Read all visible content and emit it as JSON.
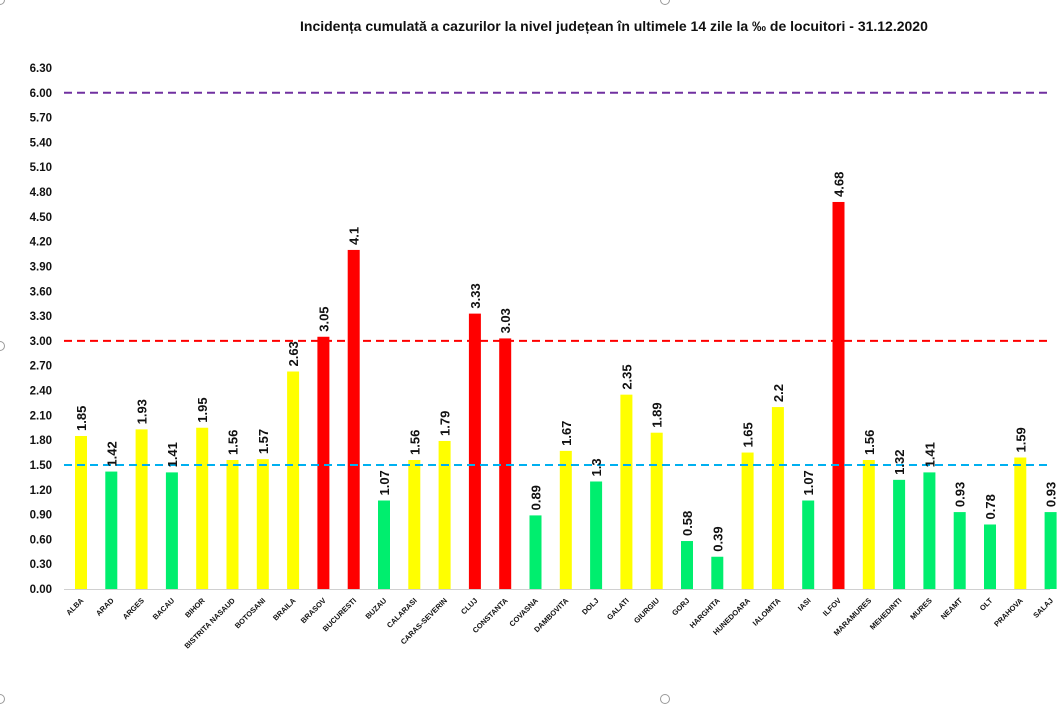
{
  "chart_data": {
    "type": "bar",
    "title": "Incidența cumulată a cazurilor la nivel județean în ultimele 14 zile la ‰ de locuitori - 31.12.2020",
    "xlabel": "",
    "ylabel": "",
    "ylim": [
      0,
      6.3
    ],
    "yticks": [
      "0.00",
      "0.30",
      "0.60",
      "0.90",
      "1.20",
      "1.50",
      "1.80",
      "2.10",
      "2.40",
      "2.70",
      "3.00",
      "3.30",
      "3.60",
      "3.90",
      "4.20",
      "4.50",
      "4.80",
      "5.10",
      "5.40",
      "5.70",
      "6.00",
      "6.30"
    ],
    "grid": false,
    "categories": [
      "ALBA",
      "ARAD",
      "ARGES",
      "BACAU",
      "BIHOR",
      "BISTRITA NASAUD",
      "BOTOSANI",
      "BRAILA",
      "BRASOV",
      "BUCURESTI",
      "BUZAU",
      "CALARASI",
      "CARAS-SEVERIN",
      "CLUJ",
      "CONSTANTA",
      "COVASNA",
      "DAMBOVITA",
      "DOLJ",
      "GALATI",
      "GIURGIU",
      "GORJ",
      "HARGHITA",
      "HUNEDOARA",
      "IALOMITA",
      "IASI",
      "ILFOV",
      "MARAMURES",
      "MEHEDINTI",
      "MURES",
      "NEAMT",
      "OLT",
      "PRAHOVA",
      "SALAJ"
    ],
    "values": [
      1.85,
      1.42,
      1.93,
      1.41,
      1.95,
      1.56,
      1.57,
      2.63,
      3.05,
      4.1,
      1.07,
      1.56,
      1.79,
      3.33,
      3.03,
      0.89,
      1.67,
      1.3,
      2.35,
      1.89,
      0.58,
      0.39,
      1.65,
      2.2,
      1.07,
      4.68,
      1.56,
      1.32,
      1.41,
      0.93,
      0.78,
      1.59,
      0.93
    ],
    "value_labels": [
      "1.85",
      "1.42",
      "1.93",
      "1.41",
      "1.95",
      "1.56",
      "1.57",
      "2.63",
      "3.05",
      "4.1",
      "1.07",
      "1.56",
      "1.79",
      "3.33",
      "3.03",
      "0.89",
      "1.67",
      "1.3",
      "2.35",
      "1.89",
      "0.58",
      "0.39",
      "1.65",
      "2.2",
      "1.07",
      "4.68",
      "1.56",
      "1.32",
      "1.41",
      "0.93",
      "0.78",
      "1.59",
      "0.93"
    ],
    "bar_colors": [
      "#ffff00",
      "#00ee6e",
      "#ffff00",
      "#00ee6e",
      "#ffff00",
      "#ffff00",
      "#ffff00",
      "#ffff00",
      "#ff0000",
      "#ff0000",
      "#00ee6e",
      "#ffff00",
      "#ffff00",
      "#ff0000",
      "#ff0000",
      "#00ee6e",
      "#ffff00",
      "#00ee6e",
      "#ffff00",
      "#ffff00",
      "#00ee6e",
      "#00ee6e",
      "#ffff00",
      "#ffff00",
      "#00ee6e",
      "#ff0000",
      "#ffff00",
      "#00ee6e",
      "#00ee6e",
      "#00ee6e",
      "#00ee6e",
      "#ffff00",
      "#00ee6e"
    ],
    "thresholds": [
      {
        "value": 6.0,
        "color": "#7030a0"
      },
      {
        "value": 3.0,
        "color": "#ff0000"
      },
      {
        "value": 1.5,
        "color": "#00b0f0"
      }
    ]
  }
}
